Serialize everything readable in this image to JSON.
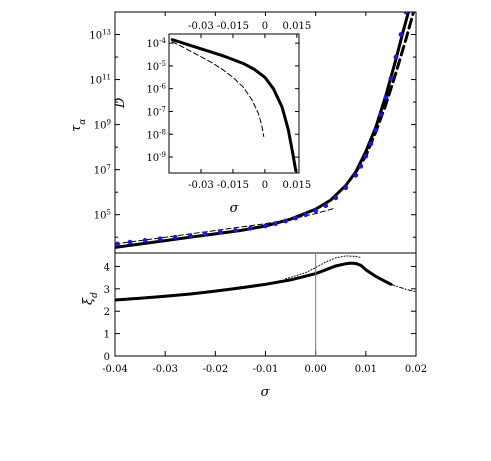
{
  "chart_data": [
    {
      "panel": "main-upper",
      "type": "line",
      "ylabel": "τ_α",
      "xlabel": "",
      "xlim": [
        -0.04,
        0.02
      ],
      "ylim_log10": [
        3.3,
        14.0
      ],
      "y_scale": "log",
      "y_ticks": [
        {
          "label": "10^5",
          "log10": 5
        },
        {
          "label": "10^7",
          "log10": 7
        },
        {
          "label": "10^9",
          "log10": 9
        },
        {
          "label": "10^11",
          "log10": 11
        },
        {
          "label": "10^13",
          "log10": 13
        }
      ],
      "series": [
        {
          "style": "solid-thick-black",
          "x": [
            -0.04,
            -0.035,
            -0.03,
            -0.025,
            -0.02,
            -0.015,
            -0.01,
            -0.005,
            0.0,
            0.003,
            0.006,
            0.008,
            0.01,
            0.012,
            0.014,
            0.016,
            0.0175,
            0.0185
          ],
          "log10_y": [
            3.55,
            3.7,
            3.85,
            4.0,
            4.15,
            4.3,
            4.5,
            4.8,
            5.25,
            5.65,
            6.3,
            6.9,
            7.8,
            8.9,
            10.3,
            11.9,
            13.2,
            14.0
          ]
        },
        {
          "style": "dashed-thin-black",
          "x": [
            -0.04,
            -0.035,
            -0.03,
            -0.025,
            -0.02,
            -0.015,
            -0.01,
            -0.005,
            0.0,
            0.004
          ],
          "log10_y": [
            3.7,
            3.85,
            4.0,
            4.15,
            4.3,
            4.45,
            4.6,
            4.8,
            5.05,
            5.3
          ]
        },
        {
          "style": "dashed-thick-black",
          "x": [
            0.008,
            0.01,
            0.012,
            0.014,
            0.016,
            0.018,
            0.0195
          ],
          "log10_y": [
            6.9,
            7.6,
            8.7,
            9.9,
            11.3,
            12.8,
            14.0
          ]
        },
        {
          "style": "dots-blue",
          "x": [
            -0.0395,
            -0.037,
            -0.034,
            -0.031,
            -0.028,
            -0.025,
            -0.022,
            -0.019,
            -0.016,
            -0.013,
            -0.01,
            -0.008,
            -0.006,
            -0.004,
            -0.002,
            0.0,
            0.002,
            0.004,
            0.006,
            0.008,
            0.009,
            0.01,
            0.011,
            0.012,
            0.013,
            0.014,
            0.015,
            0.016,
            0.017,
            0.018
          ],
          "log10_y": [
            3.7,
            3.78,
            3.86,
            3.93,
            4.0,
            4.07,
            4.14,
            4.22,
            4.3,
            4.4,
            4.5,
            4.6,
            4.72,
            4.85,
            5.0,
            5.18,
            5.4,
            5.75,
            6.2,
            6.75,
            7.15,
            7.6,
            8.15,
            8.75,
            9.45,
            10.2,
            11.05,
            12.0,
            13.0,
            14.0
          ]
        }
      ]
    },
    {
      "panel": "inset",
      "type": "line",
      "xlabel": "σ",
      "ylabel": "D",
      "y_scale": "log",
      "xlim": [
        -0.045,
        0.016
      ],
      "ylim_log10": [
        -9.7,
        -3.6
      ],
      "x_ticks": [
        "-0.03",
        "-0.015",
        "0",
        "0.015"
      ],
      "x_tick_values": [
        -0.03,
        -0.015,
        0,
        0.015
      ],
      "y_ticks": [
        {
          "label": "10^-4",
          "log10": -4
        },
        {
          "label": "10^-5",
          "log10": -5
        },
        {
          "label": "10^-6",
          "log10": -6
        },
        {
          "label": "10^-7",
          "log10": -7
        },
        {
          "label": "10^-8",
          "log10": -8
        },
        {
          "label": "10^-9",
          "log10": -9
        }
      ],
      "series": [
        {
          "style": "solid-thick-black",
          "x": [
            -0.0435,
            -0.04,
            -0.035,
            -0.03,
            -0.025,
            -0.02,
            -0.015,
            -0.01,
            -0.005,
            0.0,
            0.004,
            0.008,
            0.011,
            0.013,
            0.0145
          ],
          "log10_y": [
            -3.85,
            -3.95,
            -4.1,
            -4.25,
            -4.4,
            -4.55,
            -4.72,
            -4.9,
            -5.15,
            -5.5,
            -6.0,
            -6.8,
            -7.8,
            -8.8,
            -9.6
          ]
        },
        {
          "style": "dashed-thin-black",
          "x": [
            -0.0435,
            -0.04,
            -0.035,
            -0.03,
            -0.025,
            -0.02,
            -0.015,
            -0.01,
            -0.006,
            -0.003,
            -0.0015,
            -0.0005
          ],
          "log10_y": [
            -3.95,
            -4.1,
            -4.35,
            -4.6,
            -4.85,
            -5.15,
            -5.5,
            -5.95,
            -6.5,
            -7.1,
            -7.6,
            -8.1
          ]
        }
      ]
    },
    {
      "panel": "main-lower",
      "type": "line",
      "xlabel": "σ",
      "ylabel": "ξ_d",
      "xlim": [
        -0.04,
        0.02
      ],
      "ylim": [
        0,
        4.6
      ],
      "x_ticks": [
        "-0.04",
        "-0.03",
        "-0.02",
        "-0.01",
        "0.00",
        "0.01",
        "0.02"
      ],
      "x_tick_values": [
        -0.04,
        -0.03,
        -0.02,
        -0.01,
        0.0,
        0.01,
        0.02
      ],
      "y_ticks": [
        "0",
        "1",
        "2",
        "3",
        "4"
      ],
      "y_tick_values": [
        0,
        1,
        2,
        3,
        4
      ],
      "vertical_line_x": 0.0,
      "series": [
        {
          "style": "solid-thick-black",
          "x": [
            -0.04,
            -0.035,
            -0.03,
            -0.025,
            -0.02,
            -0.015,
            -0.01,
            -0.005,
            0.0,
            0.002,
            0.004,
            0.006,
            0.007,
            0.008,
            0.009,
            0.01,
            0.012,
            0.015
          ],
          "y": [
            2.5,
            2.58,
            2.67,
            2.77,
            2.9,
            3.04,
            3.2,
            3.4,
            3.68,
            3.85,
            4.02,
            4.12,
            4.15,
            4.13,
            4.05,
            3.85,
            3.55,
            3.2
          ]
        },
        {
          "style": "dotted-thin-black",
          "x": [
            -0.006,
            -0.004,
            -0.002,
            0.0,
            0.002,
            0.004,
            0.006,
            0.008,
            0.009
          ],
          "y": [
            3.45,
            3.58,
            3.72,
            3.95,
            4.2,
            4.38,
            4.47,
            4.45,
            4.4
          ]
        },
        {
          "style": "dashdot-thin-black",
          "x": [
            0.015,
            0.016,
            0.017,
            0.018,
            0.019,
            0.02
          ],
          "y": [
            3.2,
            3.12,
            3.05,
            2.98,
            2.92,
            2.87
          ]
        }
      ]
    }
  ]
}
